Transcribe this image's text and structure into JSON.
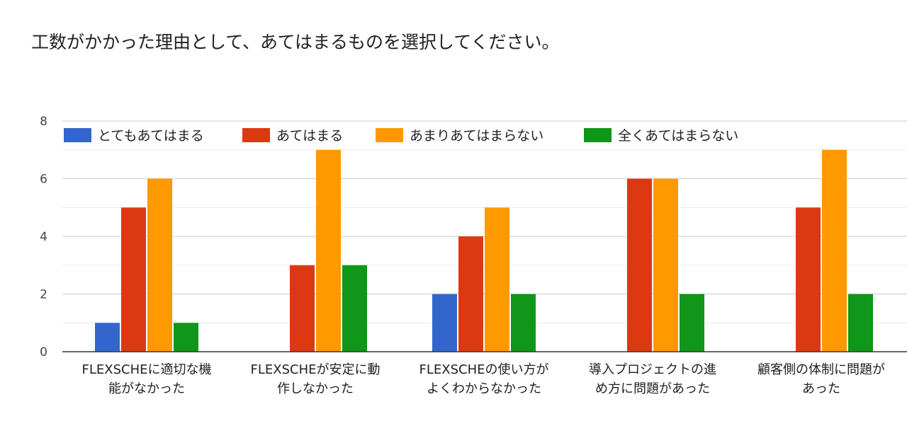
{
  "title": "工数がかかった理由として、あてはまるものを選択してください。",
  "chart_data": {
    "type": "bar",
    "title": "工数がかかった理由として、あてはまるものを選択してください。",
    "categories": [
      [
        "FLEXSCHEに適切な機",
        "能がなかった"
      ],
      [
        "FLEXSCHEが安定に動",
        "作しなかった"
      ],
      [
        "FLEXSCHEの使い方が",
        "よくわからなかった"
      ],
      [
        "導入プロジェクトの進",
        "め方に問題があった"
      ],
      [
        "顧客側の体制に問題が",
        "あった"
      ]
    ],
    "series": [
      {
        "name": "とてもあてはまる",
        "color": "#3366cc",
        "values": [
          1,
          0,
          2,
          0,
          0
        ]
      },
      {
        "name": "あてはまる",
        "color": "#dc3912",
        "values": [
          5,
          3,
          4,
          6,
          5
        ]
      },
      {
        "name": "あまりあてはまらない",
        "color": "#ff9900",
        "values": [
          6,
          7,
          5,
          6,
          7
        ]
      },
      {
        "name": "全くあてはまらない",
        "color": "#109618",
        "values": [
          1,
          3,
          2,
          2,
          2
        ]
      }
    ],
    "ylim": [
      0,
      8
    ],
    "yticks": [
      0,
      2,
      4,
      6,
      8
    ],
    "grid": true,
    "legend": "top"
  }
}
